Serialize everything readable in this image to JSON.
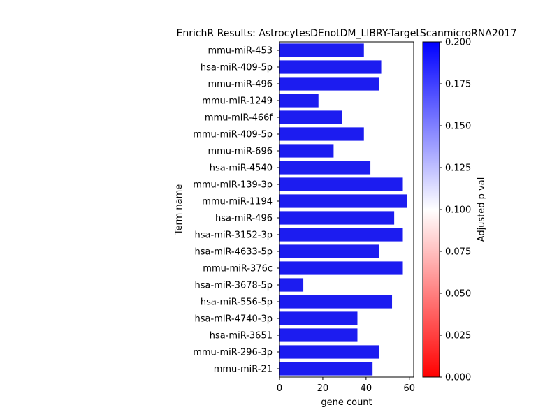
{
  "chart_data": {
    "type": "bar",
    "orientation": "horizontal",
    "title": "EnrichR Results: AstrocytesDEnotDM_LIBRY-TargetScanmicroRNA2017",
    "xlabel": "gene count",
    "ylabel": "Term name",
    "xlim": [
      0,
      62
    ],
    "xticks": [
      0,
      20,
      40,
      60
    ],
    "grid": false,
    "categories": [
      "mmu-miR-453",
      "hsa-miR-409-5p",
      "mmu-miR-496",
      "mmu-miR-1249",
      "mmu-miR-466f",
      "mmu-miR-409-5p",
      "mmu-miR-696",
      "hsa-miR-4540",
      "mmu-miR-139-3p",
      "mmu-miR-1194",
      "hsa-miR-496",
      "hsa-miR-3152-3p",
      "hsa-miR-4633-5p",
      "mmu-miR-376c",
      "hsa-miR-3678-5p",
      "hsa-miR-556-5p",
      "hsa-miR-4740-3p",
      "hsa-miR-3651",
      "mmu-miR-296-3p",
      "mmu-miR-21"
    ],
    "values": [
      39,
      47,
      46,
      18,
      29,
      39,
      25,
      42,
      57,
      59,
      53,
      57,
      46,
      57,
      11,
      52,
      36,
      36,
      46,
      43
    ],
    "bar_color": "#1c1cf0",
    "colorbar": {
      "label": "Adjusted p val",
      "range": [
        0,
        0.2
      ],
      "ticks": [
        "0.000",
        "0.025",
        "0.050",
        "0.075",
        "0.100",
        "0.125",
        "0.150",
        "0.175",
        "0.200"
      ],
      "colors": [
        "#ff0000",
        "#ffffff",
        "#0000ff"
      ]
    }
  }
}
